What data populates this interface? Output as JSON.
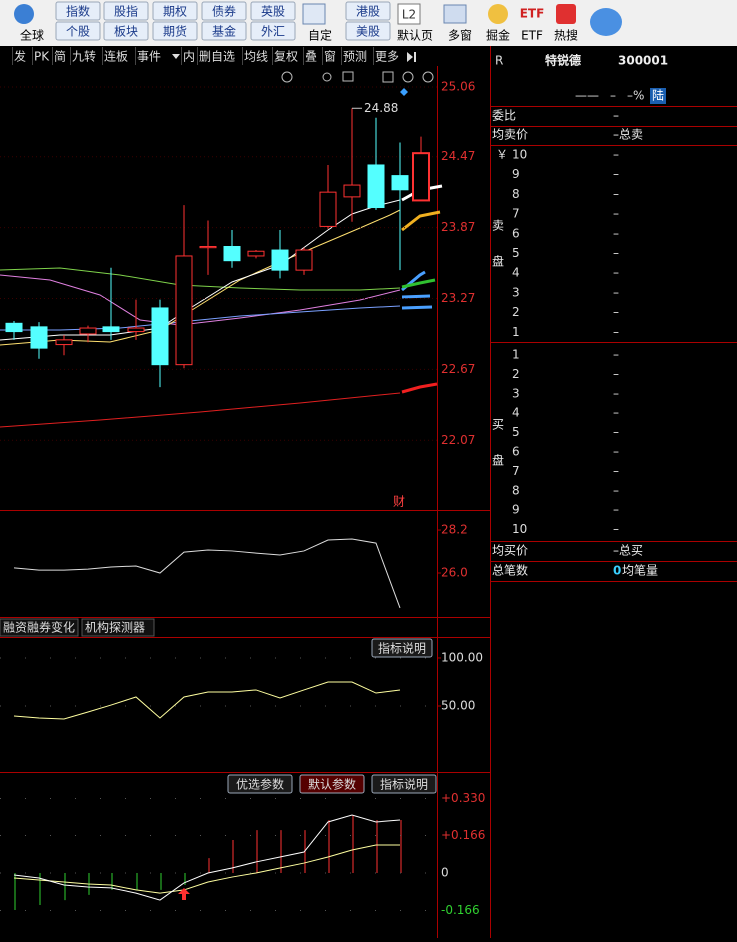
{
  "toolbar": {
    "global": "全球",
    "pairs": [
      [
        "指数",
        "个股"
      ],
      [
        "股指",
        "板块"
      ],
      [
        "期权",
        "期货"
      ],
      [
        "债券",
        "基金"
      ],
      [
        "英股",
        "外汇"
      ]
    ],
    "custom": "自定",
    "pair2": [
      "港股",
      "美股"
    ],
    "l2": "L2",
    "default_page": "默认页",
    "multi": "多窗",
    "juejin": "掘金",
    "etf_icon": "ETF",
    "etf": "ETF",
    "hot": "热搜"
  },
  "tabs": [
    "发",
    "PK",
    "简",
    "九转",
    "连板",
    "事件",
    "内",
    "删自选",
    "均线",
    "复权",
    "叠",
    "窗",
    "预测",
    "更多"
  ],
  "kline": {
    "ylim": [
      21.48,
      25.39
    ],
    "yticks": [
      25.06,
      24.47,
      23.87,
      23.27,
      22.67,
      22.07
    ],
    "high_label": 24.88,
    "marker": "财",
    "candles": [
      {
        "o": 23.06,
        "h": 23.08,
        "l": 22.92,
        "c": 22.99
      },
      {
        "o": 23.03,
        "h": 23.07,
        "l": 22.76,
        "c": 22.85
      },
      {
        "o": 22.88,
        "h": 22.96,
        "l": 22.79,
        "c": 22.92
      },
      {
        "o": 22.97,
        "h": 23.04,
        "l": 22.9,
        "c": 23.02
      },
      {
        "o": 23.03,
        "h": 23.53,
        "l": 22.92,
        "c": 22.99
      },
      {
        "o": 22.99,
        "h": 23.26,
        "l": 22.92,
        "c": 23.02
      },
      {
        "o": 23.19,
        "h": 23.26,
        "l": 22.52,
        "c": 22.71
      },
      {
        "o": 22.71,
        "h": 24.06,
        "l": 22.68,
        "c": 23.63
      },
      {
        "o": 23.7,
        "h": 23.93,
        "l": 23.47,
        "c": 23.71
      },
      {
        "o": 23.71,
        "h": 23.85,
        "l": 23.53,
        "c": 23.59
      },
      {
        "o": 23.63,
        "h": 23.68,
        "l": 23.61,
        "c": 23.67
      },
      {
        "o": 23.68,
        "h": 23.85,
        "l": 23.44,
        "c": 23.51
      },
      {
        "o": 23.51,
        "h": 23.7,
        "l": 23.47,
        "c": 23.68
      },
      {
        "o": 23.88,
        "h": 24.4,
        "l": 23.86,
        "c": 24.17
      },
      {
        "o": 24.13,
        "h": 24.88,
        "l": 23.92,
        "c": 24.23
      },
      {
        "o": 24.4,
        "h": 24.8,
        "l": 24.02,
        "c": 24.04
      },
      {
        "o": 24.31,
        "h": 24.59,
        "l": 23.51,
        "c": 24.19
      },
      {
        "o": 24.1,
        "h": 24.64,
        "l": 24.1,
        "c": 24.5
      }
    ]
  },
  "sub1": {
    "ylim": [
      23.85,
      28.97
    ],
    "yticks": [
      28.2,
      {
        "value": 26,
        "label": "26.0"
      }
    ],
    "values": [
      26.26,
      26.15,
      26.15,
      26.2,
      26.31,
      26.36,
      26.0,
      27.07,
      27.18,
      27.13,
      27.02,
      26.92,
      27.13,
      27.69,
      27.74,
      27.53,
      24.21
    ]
  },
  "sub2": {
    "tabs": [
      "融资融券变化",
      "机构探测器"
    ],
    "button": "指标说明",
    "ylim": [
      -1,
      118.7
    ],
    "yticks": [
      {
        "value": 100,
        "label": "100.00"
      },
      {
        "value": 50,
        "label": "50.00"
      }
    ],
    "values": [
      39.6,
      37.5,
      36.5,
      43.8,
      51.0,
      59.4,
      37.5,
      59.4,
      64.6,
      64.6,
      66.7,
      58.3,
      66.7,
      75.0,
      75.0,
      63.5,
      66.7
    ]
  },
  "sub3": {
    "buttons": [
      "优选参数",
      "默认参数",
      "指标说明"
    ],
    "ylim": [
      -0.288,
      0.412
    ],
    "yticks": [
      {
        "value": 0.33,
        "label": "+0.330"
      },
      {
        "value": 0.166,
        "label": "+0.166"
      },
      0,
      {
        "value": -0.166,
        "label": "-0.166"
      }
    ],
    "dif": [
      -0.009,
      -0.022,
      -0.053,
      -0.062,
      -0.066,
      -0.089,
      -0.12,
      -0.044,
      0,
      0.022,
      0.049,
      0.071,
      0.093,
      0.226,
      0.257,
      0.226,
      0.235
    ],
    "dea": [
      -0.022,
      -0.031,
      -0.04,
      -0.049,
      -0.053,
      -0.075,
      -0.089,
      -0.075,
      -0.04,
      -0.018,
      0,
      0.022,
      0.044,
      0.071,
      0.102,
      0.124,
      0.124
    ],
    "macd": [
      -0.164,
      -0.142,
      -0.12,
      -0.097,
      -0.075,
      -0.075,
      -0.075,
      -0.053,
      0.066,
      0.146,
      0.19,
      0.19,
      0.19,
      0.235,
      0.257,
      0.235,
      0.235
    ]
  },
  "quote": {
    "r": "R",
    "name": "特锐德",
    "code": "300001",
    "price": "——",
    "change": "–",
    "pct": "–%",
    "market": "陆",
    "weibi": [
      "委比",
      "–"
    ],
    "avg_sell": [
      "均卖价",
      "–总卖"
    ],
    "sell_side": [
      "卖",
      "盘"
    ],
    "buy_side": [
      "买",
      "盘"
    ],
    "yen": "￥",
    "sell": [
      [
        "10",
        "–"
      ],
      [
        "9",
        "–"
      ],
      [
        "8",
        "–"
      ],
      [
        "7",
        "–"
      ],
      [
        "6",
        "–"
      ],
      [
        "5",
        "–"
      ],
      [
        "4",
        "–"
      ],
      [
        "3",
        "–"
      ],
      [
        "2",
        "–"
      ],
      [
        "1",
        "–"
      ]
    ],
    "buy": [
      [
        "1",
        "–"
      ],
      [
        "2",
        "–"
      ],
      [
        "3",
        "–"
      ],
      [
        "4",
        "–"
      ],
      [
        "5",
        "–"
      ],
      [
        "6",
        "–"
      ],
      [
        "7",
        "–"
      ],
      [
        "8",
        "–"
      ],
      [
        "9",
        "–"
      ],
      [
        "10",
        "–"
      ]
    ],
    "avg_buy": [
      "均买价",
      "–总买"
    ],
    "total": [
      "总笔数",
      "0",
      "均笔量"
    ]
  }
}
